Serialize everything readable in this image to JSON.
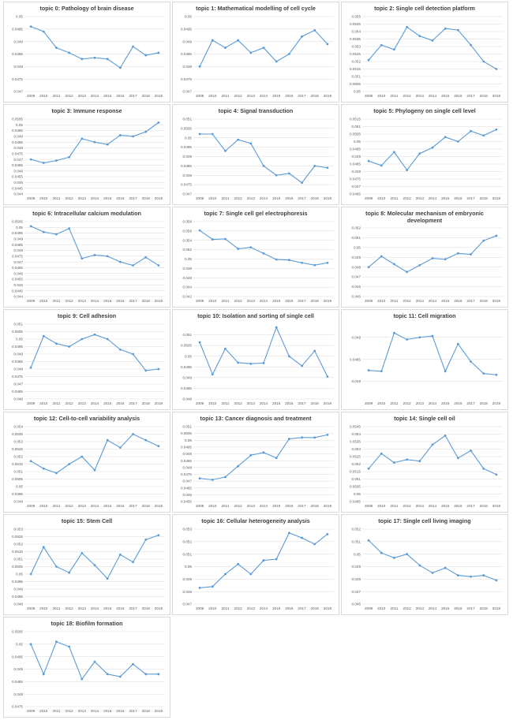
{
  "style": {
    "line_color": "#5b9bd5",
    "grid_color": "#d9d9d9",
    "text_color": "#595959",
    "title_color": "#404040"
  },
  "chart_data": [
    {
      "type": "line",
      "title": "topic 0: Pathology of brain disease",
      "categories": [
        "2009",
        "2010",
        "2011",
        "2012",
        "2013",
        "2014",
        "2015",
        "2016",
        "2017",
        "2018",
        "2019"
      ],
      "values": [
        0.0496,
        0.0494,
        0.04875,
        0.04855,
        0.0483,
        0.04835,
        0.0483,
        0.04795,
        0.0488,
        0.04845,
        0.04855
      ],
      "yticks": [
        "0.047",
        "0.0475",
        "0.048",
        "0.0485",
        "0.049",
        "0.0495",
        "0.05"
      ],
      "ylim": [
        0.047,
        0.05
      ]
    },
    {
      "type": "line",
      "title": "topic 1: Mathematical modelling of cell cycle",
      "categories": [
        "2009",
        "2010",
        "2011",
        "2012",
        "2013",
        "2014",
        "2015",
        "2016",
        "2017",
        "2018",
        "2019"
      ],
      "values": [
        0.048,
        0.04905,
        0.04875,
        0.04905,
        0.04855,
        0.04875,
        0.0482,
        0.0485,
        0.0492,
        0.04945,
        0.0489
      ],
      "yticks": [
        "0.047",
        "0.0475",
        "0.048",
        "0.0485",
        "0.049",
        "0.0495",
        "0.05"
      ],
      "ylim": [
        0.047,
        0.05
      ]
    },
    {
      "type": "line",
      "title": "topic 2: Single cell detection platform",
      "categories": [
        "2009",
        "2010",
        "2011",
        "2012",
        "2013",
        "2014",
        "2015",
        "2016",
        "2017",
        "2018",
        "2019"
      ],
      "values": [
        0.0521,
        0.0531,
        0.0528,
        0.0543,
        0.0537,
        0.0534,
        0.0542,
        0.0541,
        0.0531,
        0.052,
        0.0515
      ],
      "yticks": [
        "0.05",
        "0.0505",
        "0.051",
        "0.0515",
        "0.052",
        "0.0525",
        "0.053",
        "0.0535",
        "0.054",
        "0.0545",
        "0.055"
      ],
      "ylim": [
        0.05,
        0.055
      ]
    },
    {
      "type": "line",
      "title": "topic 3: Immune response",
      "categories": [
        "2009",
        "2010",
        "2011",
        "2012",
        "2013",
        "2014",
        "2015",
        "2016",
        "2017",
        "2018",
        "2019"
      ],
      "values": [
        0.047,
        0.0467,
        0.0469,
        0.0472,
        0.0488,
        0.0485,
        0.0483,
        0.0491,
        0.049,
        0.0494,
        0.0502
      ],
      "yticks": [
        "0.044",
        "0.0445",
        "0.045",
        "0.0455",
        "0.046",
        "0.0465",
        "0.047",
        "0.0475",
        "0.048",
        "0.0485",
        "0.049",
        "0.0495",
        "0.05",
        "0.0505"
      ],
      "ylim": [
        0.044,
        0.0505
      ]
    },
    {
      "type": "line",
      "title": "topic 4: Signal transduction",
      "categories": [
        "2009",
        "2010",
        "2011",
        "2012",
        "2013",
        "2014",
        "2015",
        "2016",
        "2017",
        "2018",
        "2019"
      ],
      "values": [
        0.0502,
        0.0502,
        0.0493,
        0.0499,
        0.0497,
        0.0485,
        0.048,
        0.0481,
        0.0476,
        0.0485,
        0.0484
      ],
      "yticks": [
        "0.047",
        "0.0475",
        "0.048",
        "0.0485",
        "0.049",
        "0.0495",
        "0.05",
        "0.0505",
        "0.051"
      ],
      "ylim": [
        0.047,
        0.051
      ]
    },
    {
      "type": "line",
      "title": "topic 5: Phylogeny on single cell level",
      "categories": [
        "2009",
        "2010",
        "2011",
        "2012",
        "2013",
        "2014",
        "2015",
        "2016",
        "2017",
        "2018",
        "2019"
      ],
      "values": [
        0.0487,
        0.0484,
        0.0493,
        0.0481,
        0.0492,
        0.0496,
        0.0503,
        0.05,
        0.0507,
        0.0504,
        0.0508
      ],
      "yticks": [
        "0.0465",
        "0.047",
        "0.0475",
        "0.048",
        "0.0485",
        "0.049",
        "0.0495",
        "0.05",
        "0.0505",
        "0.051",
        "0.0515"
      ],
      "ylim": [
        0.0465,
        0.0515
      ]
    },
    {
      "type": "line",
      "title": "topic 6: Intracellular calcium modulation",
      "categories": [
        "2009",
        "2010",
        "2011",
        "2012",
        "2013",
        "2014",
        "2015",
        "2016",
        "2017",
        "2018",
        "2019"
      ],
      "values": [
        0.0501,
        0.0496,
        0.0494,
        0.0499,
        0.0473,
        0.0476,
        0.0475,
        0.047,
        0.0467,
        0.0474,
        0.0467
      ],
      "yticks": [
        "0.044",
        "0.0445",
        "0.045",
        "0.0455",
        "0.046",
        "0.0465",
        "0.047",
        "0.0475",
        "0.048",
        "0.0485",
        "0.049",
        "0.0495",
        "0.05",
        "0.0505"
      ],
      "ylim": [
        0.044,
        0.0505
      ]
    },
    {
      "type": "line",
      "title": "topic 7: Single cell gel electrophoresis",
      "categories": [
        "2009",
        "2010",
        "2011",
        "2012",
        "2013",
        "2014",
        "2015",
        "2016",
        "2017",
        "2018",
        "2019"
      ],
      "values": [
        0.0561,
        0.0542,
        0.0543,
        0.0522,
        0.0525,
        0.0512,
        0.0499,
        0.0498,
        0.0492,
        0.0487,
        0.0492
      ],
      "yticks": [
        "0.042",
        "0.044",
        "0.046",
        "0.048",
        "0.05",
        "0.052",
        "0.054",
        "0.056",
        "0.058"
      ],
      "ylim": [
        0.042,
        0.058
      ]
    },
    {
      "type": "line",
      "title": "topic 8: Molecular mechanism of embryonic development",
      "categories": [
        "2009",
        "2010",
        "2011",
        "2012",
        "2013",
        "2014",
        "2015",
        "2016",
        "2017",
        "2018",
        "2019"
      ],
      "values": [
        0.048,
        0.0491,
        0.0483,
        0.0475,
        0.0482,
        0.0489,
        0.0488,
        0.0494,
        0.0493,
        0.0507,
        0.0512
      ],
      "yticks": [
        "0.045",
        "0.046",
        "0.047",
        "0.048",
        "0.049",
        "0.05",
        "0.051",
        "0.052"
      ],
      "ylim": [
        0.045,
        0.052
      ]
    },
    {
      "type": "line",
      "title": "topic 9: Cell adhesion",
      "categories": [
        "2009",
        "2010",
        "2011",
        "2012",
        "2013",
        "2014",
        "2015",
        "2016",
        "2017",
        "2018",
        "2019"
      ],
      "values": [
        0.0481,
        0.0502,
        0.0497,
        0.0495,
        0.05,
        0.0503,
        0.05,
        0.0493,
        0.049,
        0.0479,
        0.048
      ],
      "yticks": [
        "0.046",
        "0.0465",
        "0.047",
        "0.0475",
        "0.048",
        "0.0485",
        "0.049",
        "0.0495",
        "0.05",
        "0.0505",
        "0.051"
      ],
      "ylim": [
        0.046,
        0.051
      ]
    },
    {
      "type": "line",
      "title": "topic 10: Isolation and sorting of single cell",
      "categories": [
        "2009",
        "2010",
        "2011",
        "2012",
        "2013",
        "2014",
        "2015",
        "2016",
        "2017",
        "2018",
        "2019"
      ],
      "values": [
        0.05065,
        0.04915,
        0.05035,
        0.0497,
        0.04965,
        0.04968,
        0.05135,
        0.05,
        0.04955,
        0.05025,
        0.04905
      ],
      "yticks": [
        "0.048",
        "0.0485",
        "0.049",
        "0.0495",
        "0.05",
        "0.0505",
        "0.051"
      ],
      "ylim": [
        0.048,
        0.0515
      ]
    },
    {
      "type": "line",
      "title": "topic 11: Cell migration",
      "categories": [
        "2009",
        "2010",
        "2011",
        "2012",
        "2013",
        "2014",
        "2015",
        "2016",
        "2017",
        "2018",
        "2019"
      ],
      "values": [
        0.04825,
        0.04823,
        0.0491,
        0.04895,
        0.049,
        0.04903,
        0.04823,
        0.04885,
        0.04845,
        0.04818,
        0.04815
      ],
      "yticks": [
        "0.0475",
        "0.048",
        "0.0485",
        "0.049",
        "0.0495"
      ],
      "ylim": [
        0.0476,
        0.0493
      ]
    },
    {
      "type": "line",
      "title": "topic 12: Cell-to-cell variability analysis",
      "categories": [
        "2009",
        "2010",
        "2011",
        "2012",
        "2013",
        "2014",
        "2015",
        "2016",
        "2017",
        "2018",
        "2019"
      ],
      "values": [
        0.0517,
        0.0512,
        0.0509,
        0.0515,
        0.052,
        0.0511,
        0.0531,
        0.0526,
        0.0535,
        0.0531,
        0.0527
      ],
      "yticks": [
        "0.049",
        "0.0495",
        "0.05",
        "0.0505",
        "0.051",
        "0.0515",
        "0.052",
        "0.0525",
        "0.053",
        "0.0535",
        "0.054"
      ],
      "ylim": [
        0.049,
        0.054
      ]
    },
    {
      "type": "line",
      "title": "topic 13: Cancer diagnosis and treatment",
      "categories": [
        "2009",
        "2010",
        "2011",
        "2012",
        "2013",
        "2014",
        "2015",
        "2016",
        "2017",
        "2018",
        "2019"
      ],
      "values": [
        0.0472,
        0.0471,
        0.0473,
        0.0481,
        0.0489,
        0.0491,
        0.0487,
        0.0501,
        0.0502,
        0.0502,
        0.0504
      ],
      "yticks": [
        "0.0455",
        "0.046",
        "0.0465",
        "0.047",
        "0.0475",
        "0.048",
        "0.0485",
        "0.049",
        "0.0495",
        "0.05",
        "0.0505",
        "0.051"
      ],
      "ylim": [
        0.0455,
        0.051
      ]
    },
    {
      "type": "line",
      "title": "topic 14: Single cell oil",
      "categories": [
        "2009",
        "2010",
        "2011",
        "2012",
        "2013",
        "2014",
        "2015",
        "2016",
        "2017",
        "2018",
        "2019"
      ],
      "values": [
        0.0517,
        0.0527,
        0.0521,
        0.0523,
        0.0522,
        0.0533,
        0.0539,
        0.0524,
        0.0529,
        0.0517,
        0.0513
      ],
      "yticks": [
        "0.0495",
        "0.05",
        "0.0505",
        "0.051",
        "0.0515",
        "0.052",
        "0.0525",
        "0.053",
        "0.0535",
        "0.054",
        "0.0545"
      ],
      "ylim": [
        0.0495,
        0.0545
      ]
    },
    {
      "type": "line",
      "title": "topic 15: Stem Cell",
      "categories": [
        "2009",
        "2010",
        "2011",
        "2012",
        "2013",
        "2014",
        "2015",
        "2016",
        "2017",
        "2018",
        "2019"
      ],
      "values": [
        0.05,
        0.0518,
        0.0505,
        0.0501,
        0.0514,
        0.0506,
        0.0497,
        0.0513,
        0.0508,
        0.0523,
        0.0526
      ],
      "yticks": [
        "0.048",
        "0.0485",
        "0.049",
        "0.0495",
        "0.05",
        "0.0505",
        "0.051",
        "0.0515",
        "0.052",
        "0.0525",
        "0.053"
      ],
      "ylim": [
        0.048,
        0.053
      ]
    },
    {
      "type": "line",
      "title": "topic 16: Cellular heterogeneity analysis",
      "categories": [
        "2009",
        "2010",
        "2011",
        "2012",
        "2013",
        "2014",
        "2015",
        "2016",
        "2017",
        "2018",
        "2019"
      ],
      "values": [
        0.0483,
        0.0484,
        0.0494,
        0.0502,
        0.0494,
        0.0505,
        0.0506,
        0.0527,
        0.0523,
        0.0518,
        0.0526
      ],
      "yticks": [
        "0.047",
        "0.048",
        "0.049",
        "0.05",
        "0.051",
        "0.052",
        "0.053"
      ],
      "ylim": [
        0.047,
        0.053
      ]
    },
    {
      "type": "line",
      "title": "topic 17: Single cell living imaging",
      "categories": [
        "2009",
        "2010",
        "2011",
        "2012",
        "2013",
        "2014",
        "2015",
        "2016",
        "2017",
        "2018",
        "2019"
      ],
      "values": [
        0.0511,
        0.0501,
        0.0497,
        0.05,
        0.0491,
        0.0485,
        0.0489,
        0.0483,
        0.0482,
        0.0483,
        0.0479
      ],
      "yticks": [
        "0.046",
        "0.047",
        "0.048",
        "0.049",
        "0.05",
        "0.051",
        "0.052"
      ],
      "ylim": [
        0.046,
        0.052
      ]
    },
    {
      "type": "line",
      "title": "topic 18: Biofilm formation",
      "categories": [
        "2009",
        "2010",
        "2011",
        "2012",
        "2013",
        "2014",
        "2015",
        "2016",
        "2017",
        "2018",
        "2019"
      ],
      "values": [
        0.05,
        0.0488,
        0.0501,
        0.0499,
        0.0486,
        0.0493,
        0.0488,
        0.0487,
        0.0492,
        0.0488,
        0.0488
      ],
      "yticks": [
        "0.0475",
        "0.048",
        "0.0485",
        "0.049",
        "0.0495",
        "0.05",
        "0.0505"
      ],
      "ylim": [
        0.0475,
        0.0505
      ]
    }
  ]
}
